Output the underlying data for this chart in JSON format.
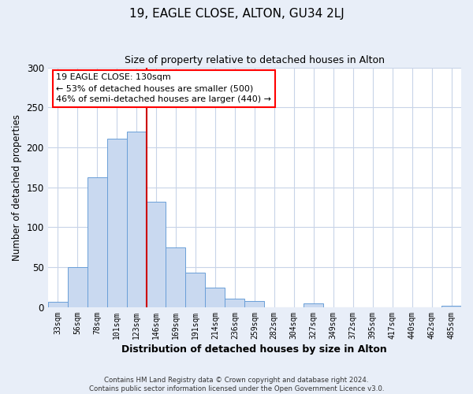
{
  "title": "19, EAGLE CLOSE, ALTON, GU34 2LJ",
  "subtitle": "Size of property relative to detached houses in Alton",
  "xlabel": "Distribution of detached houses by size in Alton",
  "ylabel": "Number of detached properties",
  "bar_labels": [
    "33sqm",
    "56sqm",
    "78sqm",
    "101sqm",
    "123sqm",
    "146sqm",
    "169sqm",
    "191sqm",
    "214sqm",
    "236sqm",
    "259sqm",
    "282sqm",
    "304sqm",
    "327sqm",
    "349sqm",
    "372sqm",
    "395sqm",
    "417sqm",
    "440sqm",
    "462sqm",
    "485sqm"
  ],
  "bar_values": [
    7,
    50,
    163,
    211,
    220,
    132,
    75,
    43,
    25,
    11,
    8,
    0,
    0,
    5,
    0,
    0,
    0,
    0,
    0,
    0,
    2
  ],
  "bar_color": "#c9d9f0",
  "bar_edgecolor": "#6a9fd8",
  "vline_x_index": 4,
  "vline_color": "#cc0000",
  "ylim": [
    0,
    300
  ],
  "yticks": [
    0,
    50,
    100,
    150,
    200,
    250,
    300
  ],
  "annotation_title": "19 EAGLE CLOSE: 130sqm",
  "annotation_line1": "← 53% of detached houses are smaller (500)",
  "annotation_line2": "46% of semi-detached houses are larger (440) →",
  "footer_line1": "Contains HM Land Registry data © Crown copyright and database right 2024.",
  "footer_line2": "Contains public sector information licensed under the Open Government Licence v3.0.",
  "background_color": "#e8eef8",
  "plot_bg_color": "#ffffff",
  "grid_color": "#c8d4e8"
}
